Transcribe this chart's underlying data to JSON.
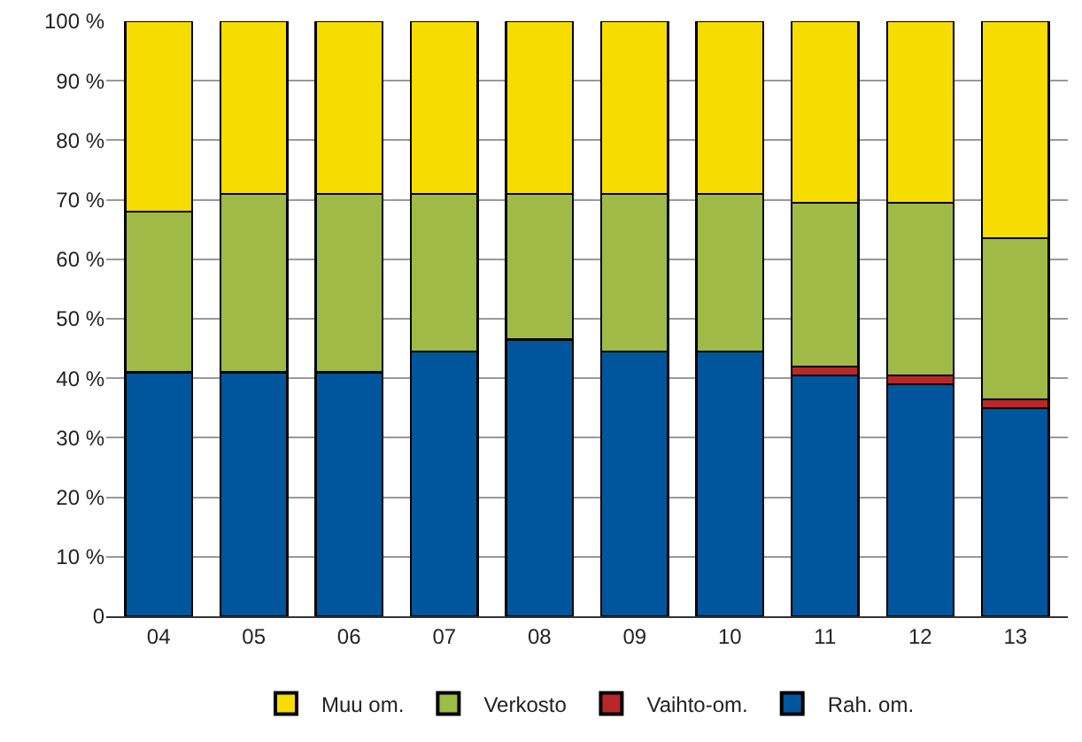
{
  "chart_data": {
    "type": "bar",
    "stacked": true,
    "categories": [
      "04",
      "05",
      "06",
      "07",
      "08",
      "09",
      "10",
      "11",
      "12",
      "13"
    ],
    "series": [
      {
        "name": "Rah. om.",
        "color": "#00569c",
        "values": [
          41,
          41,
          41,
          44.5,
          46.5,
          44.5,
          44.5,
          40.5,
          39,
          35
        ]
      },
      {
        "name": "Vaihto-om.",
        "color": "#b8282a",
        "values": [
          null,
          null,
          null,
          null,
          null,
          null,
          null,
          1.5,
          1.5,
          1.5
        ]
      },
      {
        "name": "Verkosto",
        "color": "#9fba46",
        "values": [
          27,
          30,
          30,
          26.5,
          24.5,
          26.5,
          26.5,
          27.5,
          29,
          27
        ]
      },
      {
        "name": "Muu om.",
        "color": "#f7dc00",
        "values": [
          32,
          29,
          29,
          29,
          29,
          29,
          29,
          30.5,
          30.5,
          36.5
        ]
      }
    ],
    "ylim": [
      0,
      100
    ],
    "yticks": [
      0,
      {
        "value": 10,
        "label": "10 %"
      },
      {
        "value": 20,
        "label": "20 %"
      },
      {
        "value": 30,
        "label": "30 %"
      },
      {
        "value": 40,
        "label": "40 %"
      },
      {
        "value": 50,
        "label": "50 %"
      },
      {
        "value": 60,
        "label": "60 %"
      },
      {
        "value": 70,
        "label": "70 %"
      },
      {
        "value": 80,
        "label": "80 %"
      },
      {
        "value": 90,
        "label": "90 %"
      },
      {
        "value": 100,
        "label": "100 %"
      }
    ],
    "grid": "y",
    "legend": "bottom"
  }
}
